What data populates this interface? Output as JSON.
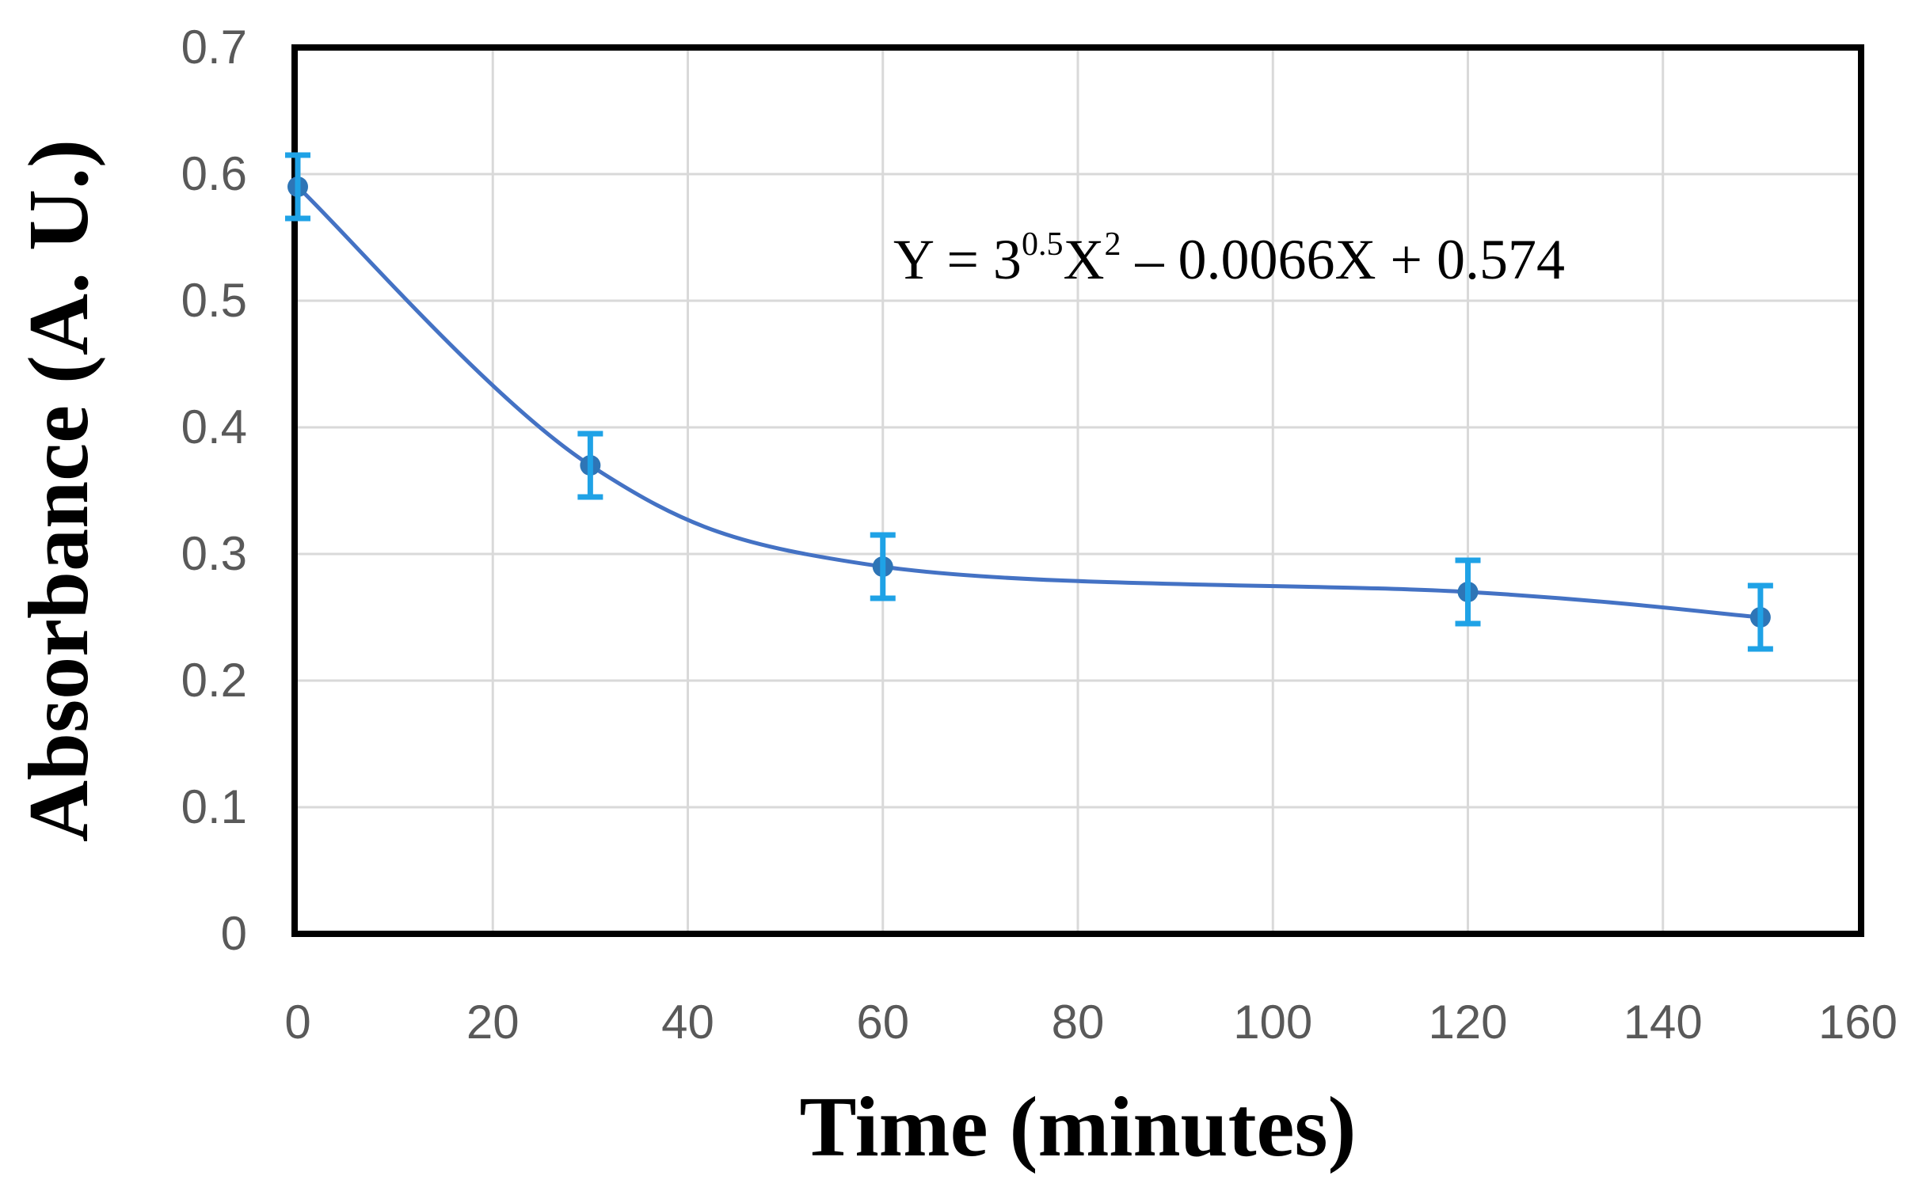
{
  "chart_data": {
    "type": "line",
    "title": "",
    "xlabel": "Time (minutes)",
    "ylabel": "Absorbance (A. U.)",
    "xlim": [
      0,
      160
    ],
    "ylim": [
      0,
      0.7
    ],
    "x_ticks": [
      "0",
      "20",
      "40",
      "60",
      "80",
      "100",
      "120",
      "140",
      "160"
    ],
    "y_ticks": [
      "0",
      "0.1",
      "0.2",
      "0.3",
      "0.4",
      "0.5",
      "0.6",
      "0.7"
    ],
    "grid": true,
    "smooth": true,
    "series": [
      {
        "color": "#4472C4",
        "marker_color": "#2E75B6",
        "error_color": "#1FA2E6",
        "points": [
          {
            "x": 0,
            "y": 0.59,
            "err": 0.025
          },
          {
            "x": 30,
            "y": 0.37,
            "err": 0.025
          },
          {
            "x": 60,
            "y": 0.29,
            "err": 0.025
          },
          {
            "x": 120,
            "y": 0.27,
            "err": 0.025
          },
          {
            "x": 150,
            "y": 0.25,
            "err": 0.025
          }
        ]
      }
    ],
    "annotation": {
      "before_sup1": "Y = 3",
      "sup1": "0.5",
      "mid": "X",
      "sup2": "2",
      "after": " – 0.0066X + 0.574"
    }
  }
}
